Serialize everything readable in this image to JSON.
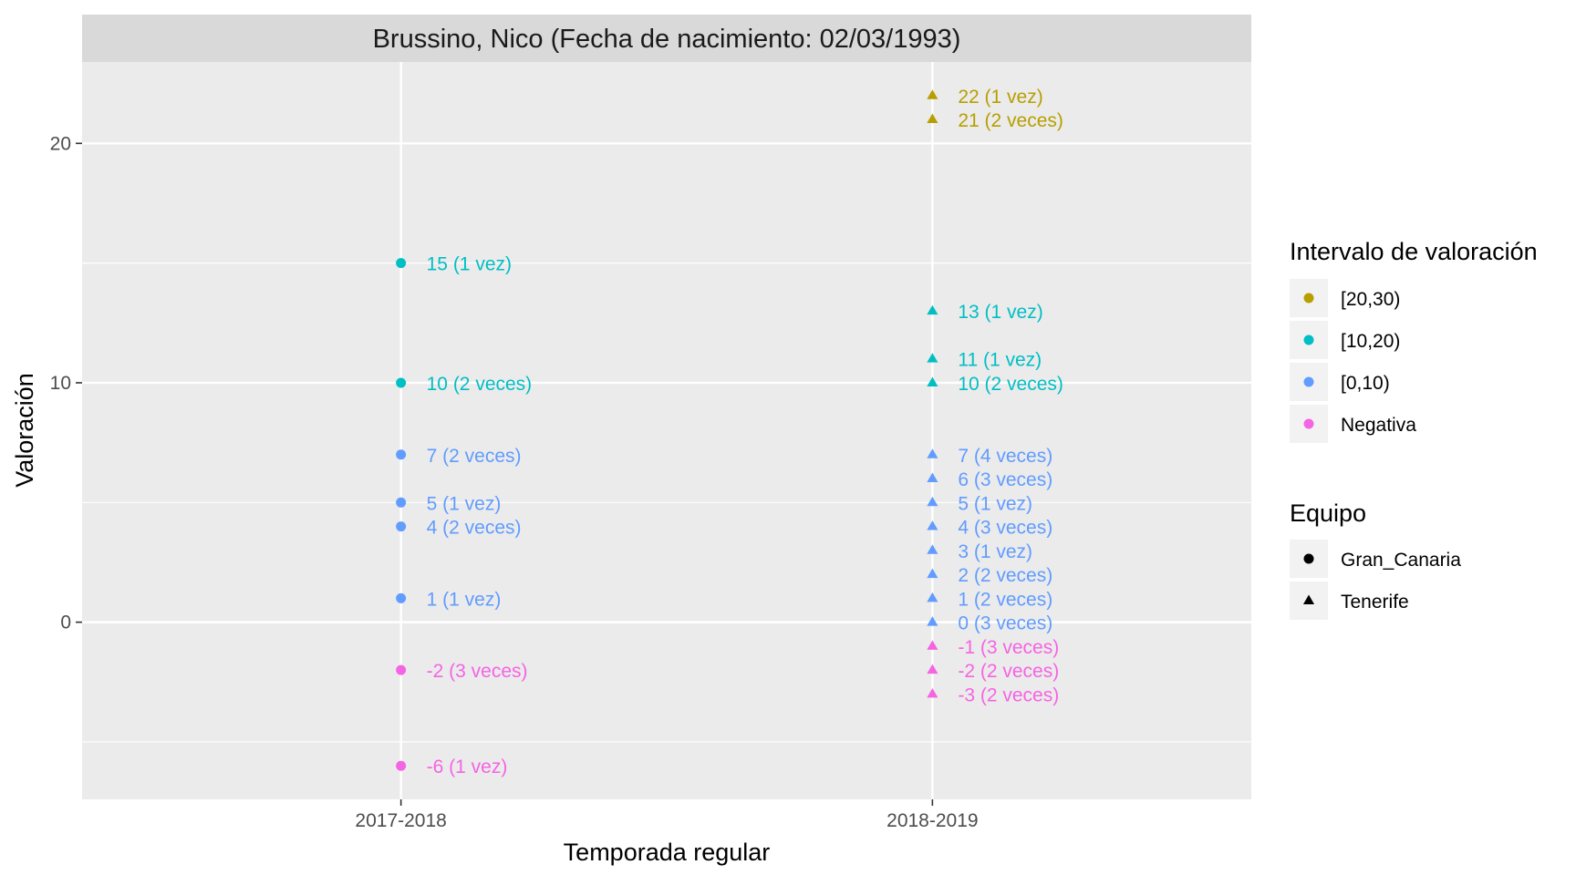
{
  "chart_data": {
    "type": "scatter",
    "title": "Brussino, Nico (Fecha de nacimiento: 02/03/1993)",
    "xlabel": "Temporada regular",
    "ylabel": "Valoración",
    "categories": [
      "2017-2018",
      "2018-2019"
    ],
    "ylim": [
      -7.4,
      23.4
    ],
    "yticks": [
      0,
      10,
      20
    ],
    "grid": true,
    "legend_position": "right",
    "colors": {
      "[20,30)": "#B79F00",
      "[10,20)": "#00BFC4",
      "[0,10)": "#619CFF",
      "Negativa": "#F564E3"
    },
    "legends": {
      "color": {
        "title": "Intervalo de valoración",
        "entries": [
          "[20,30)",
          "[10,20)",
          "[0,10)",
          "Negativa"
        ]
      },
      "shape": {
        "title": "Equipo",
        "entries": [
          {
            "name": "Gran_Canaria",
            "shape": "circle"
          },
          {
            "name": "Tenerife",
            "shape": "triangle"
          }
        ]
      }
    },
    "points": [
      {
        "x": "2017-2018",
        "y": 15,
        "interval": "[10,20)",
        "team": "Gran_Canaria",
        "label": "15 (1 vez)"
      },
      {
        "x": "2017-2018",
        "y": 10,
        "interval": "[10,20)",
        "team": "Gran_Canaria",
        "label": "10 (2 veces)"
      },
      {
        "x": "2017-2018",
        "y": 7,
        "interval": "[0,10)",
        "team": "Gran_Canaria",
        "label": "7 (2 veces)"
      },
      {
        "x": "2017-2018",
        "y": 5,
        "interval": "[0,10)",
        "team": "Gran_Canaria",
        "label": "5 (1 vez)"
      },
      {
        "x": "2017-2018",
        "y": 4,
        "interval": "[0,10)",
        "team": "Gran_Canaria",
        "label": "4 (2 veces)"
      },
      {
        "x": "2017-2018",
        "y": 1,
        "interval": "[0,10)",
        "team": "Gran_Canaria",
        "label": "1 (1 vez)"
      },
      {
        "x": "2017-2018",
        "y": -2,
        "interval": "Negativa",
        "team": "Gran_Canaria",
        "label": "-2 (3 veces)"
      },
      {
        "x": "2017-2018",
        "y": -6,
        "interval": "Negativa",
        "team": "Gran_Canaria",
        "label": "-6 (1 vez)"
      },
      {
        "x": "2018-2019",
        "y": 22,
        "interval": "[20,30)",
        "team": "Tenerife",
        "label": "22 (1 vez)"
      },
      {
        "x": "2018-2019",
        "y": 21,
        "interval": "[20,30)",
        "team": "Tenerife",
        "label": "21 (2 veces)"
      },
      {
        "x": "2018-2019",
        "y": 13,
        "interval": "[10,20)",
        "team": "Tenerife",
        "label": "13 (1 vez)"
      },
      {
        "x": "2018-2019",
        "y": 11,
        "interval": "[10,20)",
        "team": "Tenerife",
        "label": "11 (1 vez)"
      },
      {
        "x": "2018-2019",
        "y": 10,
        "interval": "[10,20)",
        "team": "Tenerife",
        "label": "10 (2 veces)"
      },
      {
        "x": "2018-2019",
        "y": 7,
        "interval": "[0,10)",
        "team": "Tenerife",
        "label": "7 (4 veces)"
      },
      {
        "x": "2018-2019",
        "y": 6,
        "interval": "[0,10)",
        "team": "Tenerife",
        "label": "6 (3 veces)"
      },
      {
        "x": "2018-2019",
        "y": 5,
        "interval": "[0,10)",
        "team": "Tenerife",
        "label": "5 (1 vez)"
      },
      {
        "x": "2018-2019",
        "y": 4,
        "interval": "[0,10)",
        "team": "Tenerife",
        "label": "4 (3 veces)"
      },
      {
        "x": "2018-2019",
        "y": 3,
        "interval": "[0,10)",
        "team": "Tenerife",
        "label": "3 (1 vez)"
      },
      {
        "x": "2018-2019",
        "y": 2,
        "interval": "[0,10)",
        "team": "Tenerife",
        "label": "2 (2 veces)"
      },
      {
        "x": "2018-2019",
        "y": 1,
        "interval": "[0,10)",
        "team": "Tenerife",
        "label": "1 (2 veces)"
      },
      {
        "x": "2018-2019",
        "y": 0,
        "interval": "[0,10)",
        "team": "Tenerife",
        "label": "0 (3 veces)"
      },
      {
        "x": "2018-2019",
        "y": -1,
        "interval": "Negativa",
        "team": "Tenerife",
        "label": "-1 (3 veces)"
      },
      {
        "x": "2018-2019",
        "y": -2,
        "interval": "Negativa",
        "team": "Tenerife",
        "label": "-2 (2 veces)"
      },
      {
        "x": "2018-2019",
        "y": -3,
        "interval": "Negativa",
        "team": "Tenerife",
        "label": "-3 (2 veces)"
      }
    ]
  }
}
